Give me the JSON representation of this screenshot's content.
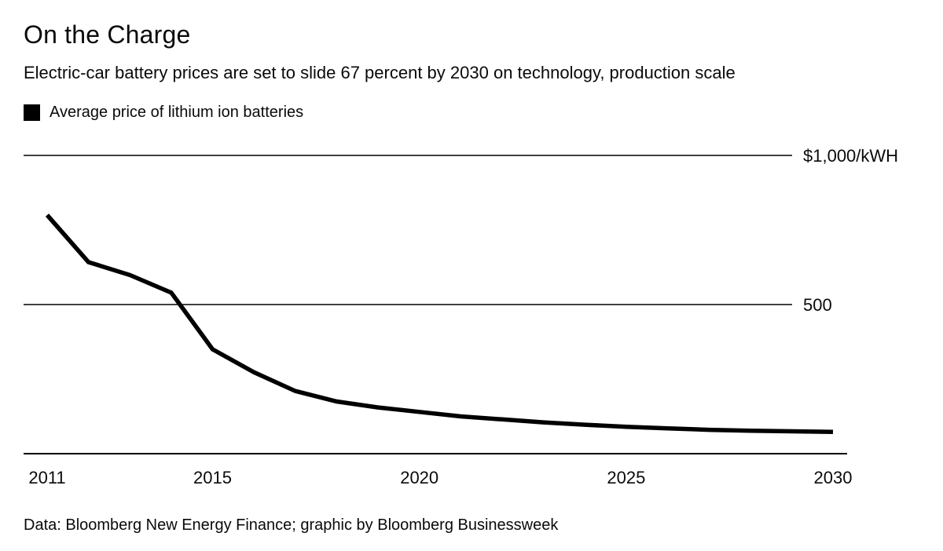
{
  "page": {
    "title": "On the Charge",
    "subtitle": "Electric-car battery prices are set to slide 67 percent by 2030 on technology, production scale",
    "legend": {
      "label": "Average price of lithium ion batteries",
      "swatch_color": "#000000"
    },
    "footer": "Data: Bloomberg New Energy Finance; graphic by Bloomberg Businessweek"
  },
  "chart_data": {
    "type": "line",
    "title": "On the Charge",
    "subtitle": "Electric-car battery prices are set to slide 67 percent by 2030 on technology, production scale",
    "x": [
      2011,
      2012,
      2013,
      2014,
      2015,
      2016,
      2017,
      2018,
      2019,
      2020,
      2021,
      2022,
      2023,
      2024,
      2025,
      2026,
      2027,
      2028,
      2029,
      2030
    ],
    "series": [
      {
        "name": "Average price of lithium ion batteries",
        "values": [
          800,
          642,
          599,
          540,
          350,
          273,
          210,
          175,
          155,
          140,
          125,
          115,
          105,
          97,
          90,
          85,
          80,
          77,
          75,
          73
        ]
      }
    ],
    "xlabel": "",
    "ylabel": "$/kWH",
    "ylim": [
      0,
      1000
    ],
    "xlim": [
      2011,
      2030
    ],
    "grid": true,
    "gridlines": [
      {
        "value": 1000,
        "label": "$1,000/kWH"
      },
      {
        "value": 500,
        "label": "500"
      }
    ],
    "x_ticks": [
      2011,
      2015,
      2020,
      2025,
      2030
    ],
    "line_color": "#000000",
    "axis_color": "#000000",
    "legend_position": "top-left"
  }
}
